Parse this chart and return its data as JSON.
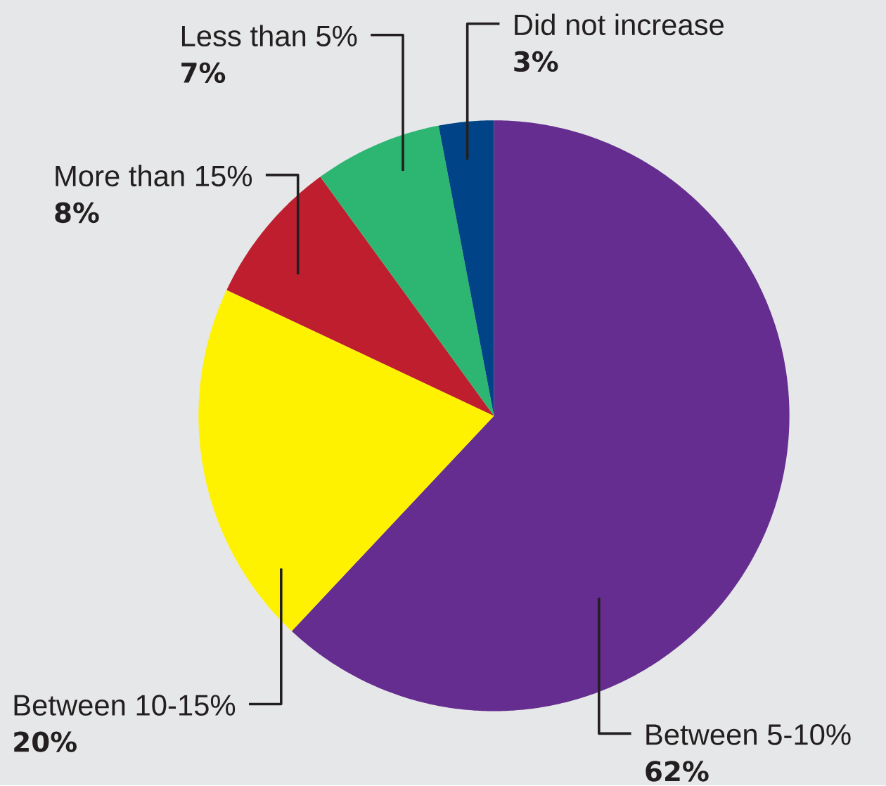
{
  "chart_data": {
    "type": "pie",
    "categories": [
      "Between 5-10%",
      "Between 10-15%",
      "More than 15%",
      "Less than 5%",
      "Did not increase"
    ],
    "values": [
      62,
      20,
      8,
      7,
      3
    ],
    "colors": [
      "#652d8f",
      "#fff200",
      "#be1e2d",
      "#2db672",
      "#004386"
    ],
    "value_labels": [
      "62%",
      "20%",
      "8%",
      "7%",
      "3%"
    ]
  }
}
